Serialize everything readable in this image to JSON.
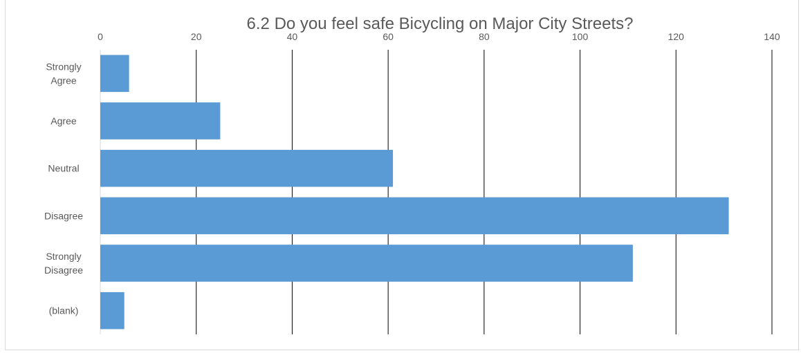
{
  "chart_data": {
    "type": "bar",
    "orientation": "horizontal",
    "title": "6.2 Do you feel safe Bicycling on Major City Streets?",
    "categories": [
      [
        "Strongly",
        "Agree"
      ],
      [
        "Agree"
      ],
      [
        "Neutral"
      ],
      [
        "Disagree"
      ],
      [
        "Strongly",
        "Disagree"
      ],
      [
        "(blank)"
      ]
    ],
    "values": [
      6,
      25,
      61,
      131,
      111,
      5
    ],
    "xlim": [
      0,
      140
    ],
    "ticks": [
      "0",
      "20",
      "40",
      "60",
      "80",
      "100",
      "120",
      "140"
    ],
    "tick_values": [
      0,
      20,
      40,
      60,
      80,
      100,
      120,
      140
    ],
    "axis_position": "top",
    "grid": true,
    "legend": "none",
    "bar_color": "#5b9bd5",
    "grid_color": "#000000"
  }
}
